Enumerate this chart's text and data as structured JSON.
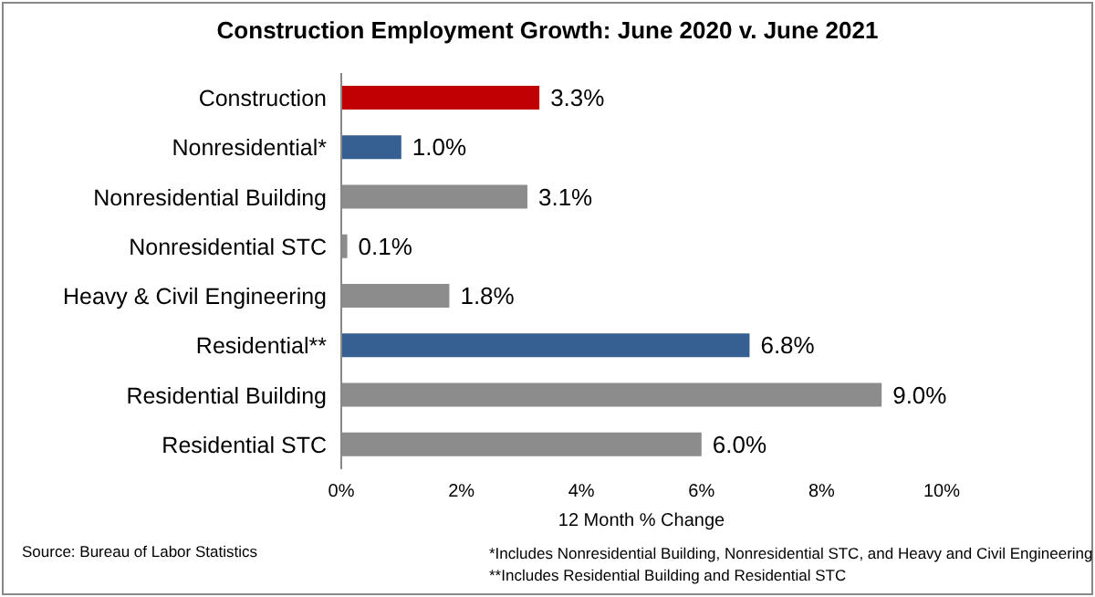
{
  "chart_data": {
    "type": "bar",
    "orientation": "horizontal",
    "title": "Construction Employment Growth: June 2020 v. June 2021",
    "xlabel": "12 Month % Change",
    "categories": [
      "Construction",
      "Nonresidential*",
      "Nonresidential Building",
      "Nonresidential STC",
      "Heavy & Civil Engineering",
      "Residential**",
      "Residential Building",
      "Residential STC"
    ],
    "values": [
      3.3,
      1.0,
      3.1,
      0.1,
      1.8,
      6.8,
      9.0,
      6.0
    ],
    "colors": [
      "#c00000",
      "#376092",
      "#8c8c8c",
      "#8c8c8c",
      "#8c8c8c",
      "#376092",
      "#8c8c8c",
      "#8c8c8c"
    ],
    "value_labels": [
      "3.3%",
      "1.0%",
      "3.1%",
      "0.1%",
      "1.8%",
      "6.8%",
      "9.0%",
      "6.0%"
    ],
    "xlim": [
      0,
      10
    ],
    "xticks": [
      {
        "value": 0,
        "label": "0%"
      },
      {
        "value": 2,
        "label": "2%"
      },
      {
        "value": 4,
        "label": "4%"
      },
      {
        "value": 6,
        "label": "6%"
      },
      {
        "value": 8,
        "label": "8%"
      },
      {
        "value": 10,
        "label": "10%"
      }
    ],
    "grid": false,
    "annotations": [
      "Source:  Bureau of Labor Statistics",
      "*Includes Nonresidential Building, Nonresidential STC, and Heavy and Civil Engineering",
      "**Includes Residential Building and Residential STC"
    ]
  }
}
